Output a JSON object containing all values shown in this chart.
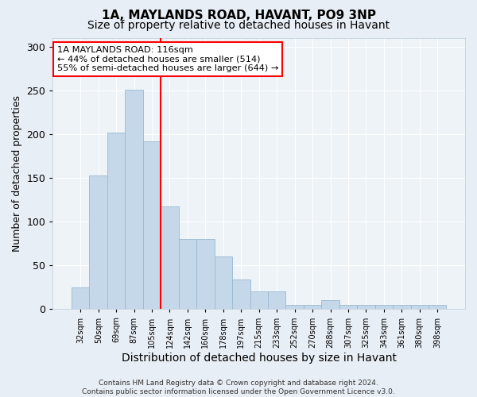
{
  "title_main": "1A, MAYLANDS ROAD, HAVANT, PO9 3NP",
  "title_sub": "Size of property relative to detached houses in Havant",
  "xlabel": "Distribution of detached houses by size in Havant",
  "ylabel": "Number of detached properties",
  "footer": "Contains HM Land Registry data © Crown copyright and database right 2024.\nContains public sector information licensed under the Open Government Licence v3.0.",
  "bin_labels": [
    "32sqm",
    "50sqm",
    "69sqm",
    "87sqm",
    "105sqm",
    "124sqm",
    "142sqm",
    "160sqm",
    "178sqm",
    "197sqm",
    "215sqm",
    "233sqm",
    "252sqm",
    "270sqm",
    "288sqm",
    "307sqm",
    "325sqm",
    "343sqm",
    "361sqm",
    "380sqm",
    "398sqm"
  ],
  "bar_heights": [
    25,
    153,
    202,
    251,
    192,
    117,
    80,
    80,
    60,
    34,
    20,
    20,
    5,
    5,
    10,
    5,
    5,
    5,
    5,
    5,
    5
  ],
  "bar_color": "#c5d8ea",
  "bar_edge_color": "#9ab8d0",
  "vline_x": 4.5,
  "vline_color": "red",
  "annotation_title": "1A MAYLANDS ROAD: 116sqm",
  "annotation_line1": "← 44% of detached houses are smaller (514)",
  "annotation_line2": "55% of semi-detached houses are larger (644) →",
  "annotation_box_color": "white",
  "annotation_box_edge": "red",
  "ylim": [
    0,
    310
  ],
  "bg_color": "#e8eef5",
  "plot_bg_color": "#eef3f8",
  "grid_color": "white",
  "title_main_fontsize": 11,
  "title_sub_fontsize": 10,
  "xlabel_fontsize": 10,
  "ylabel_fontsize": 9
}
